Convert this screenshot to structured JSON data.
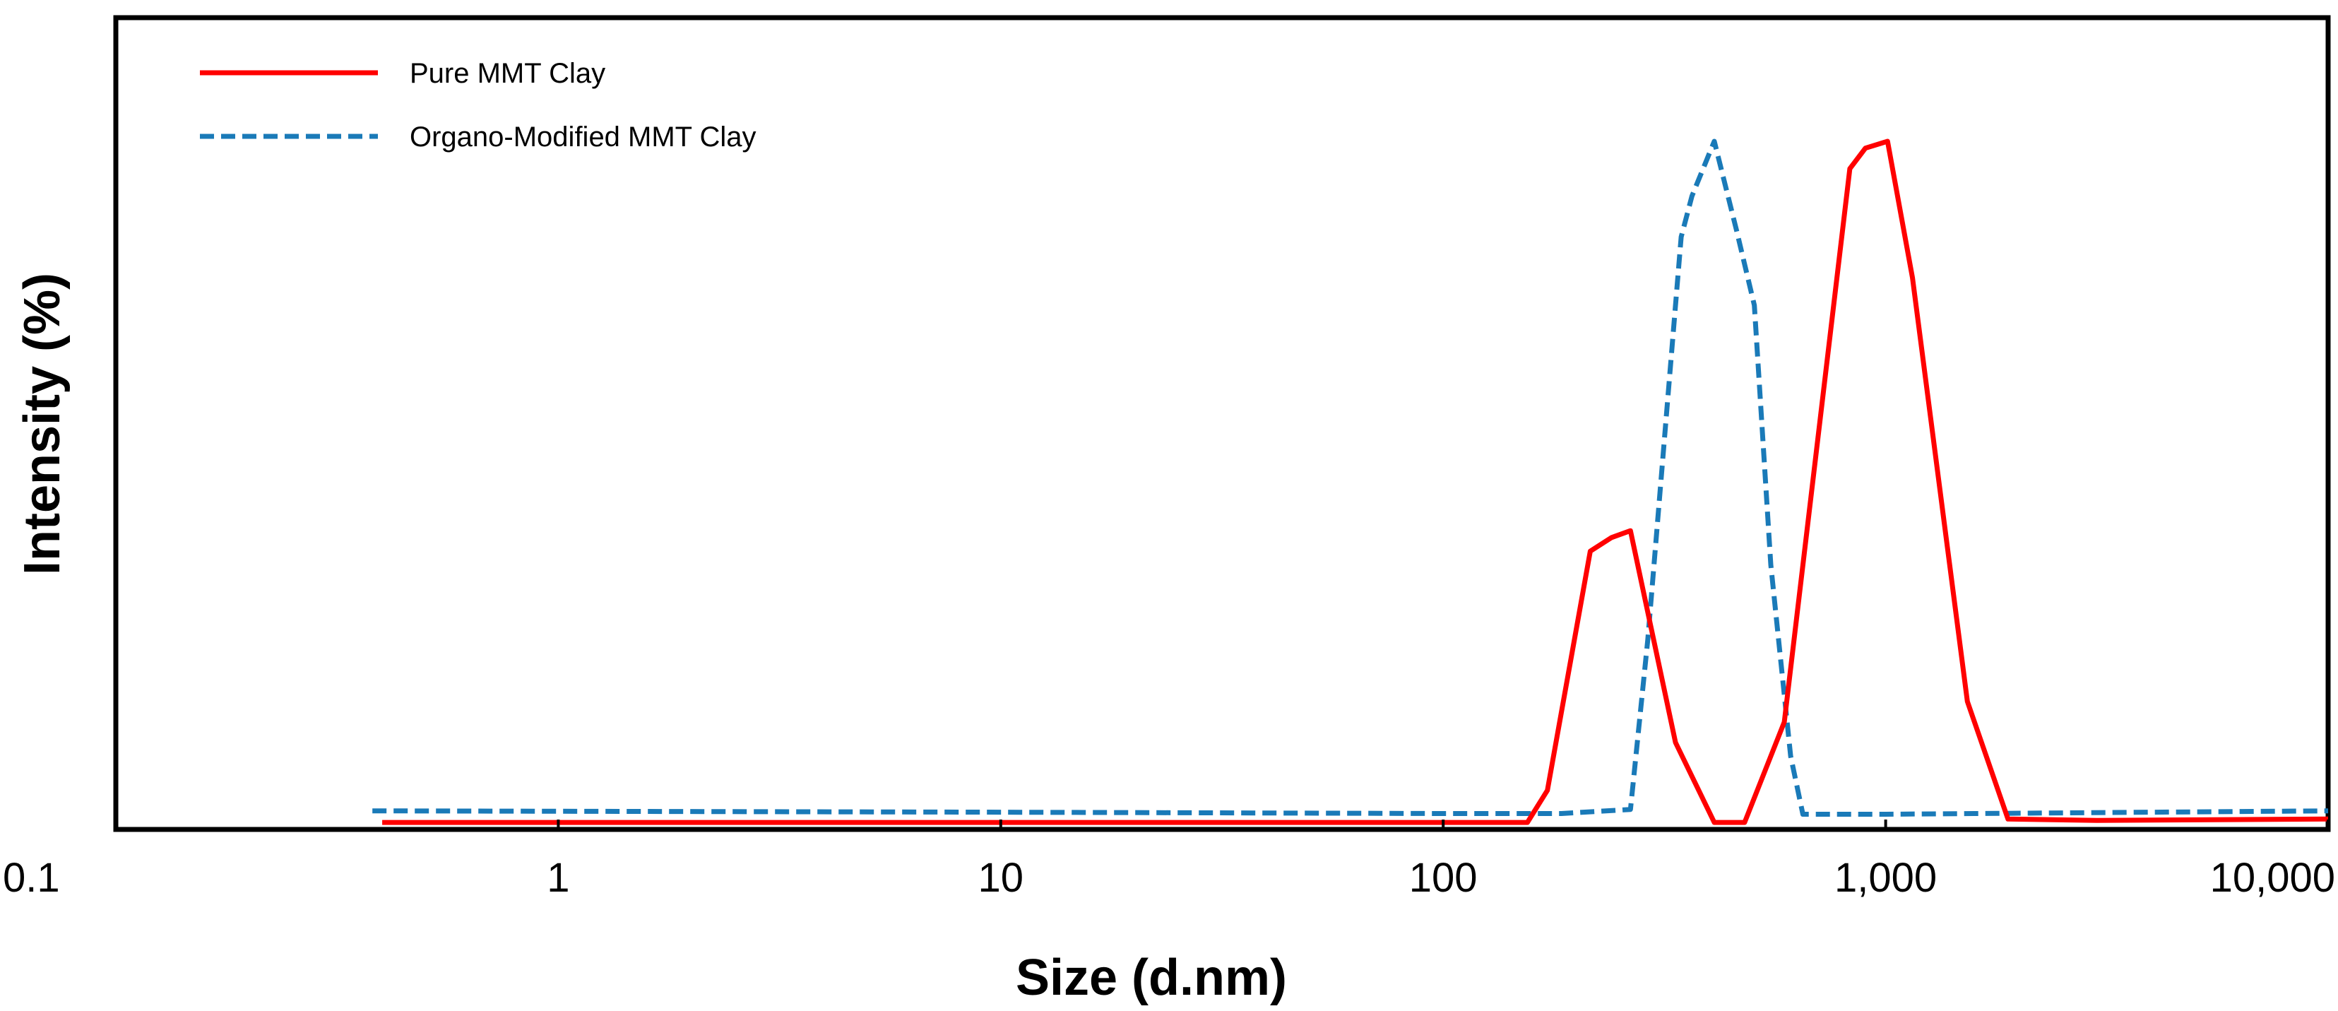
{
  "chart_data": {
    "type": "line",
    "title": "",
    "xlabel": "Size (d.nm)",
    "ylabel": "Intensity (%)",
    "x_scale": "log",
    "xlim": [
      0.1,
      10000
    ],
    "ylim": [
      0,
      100
    ],
    "y_ticks_shown": false,
    "grid": false,
    "legend_position": "top-left",
    "x_ticks": [
      {
        "value": 0.1,
        "label": "0.1"
      },
      {
        "value": 1,
        "label": "1"
      },
      {
        "value": 10,
        "label": "10"
      },
      {
        "value": 100,
        "label": "100"
      },
      {
        "value": 1000,
        "label": "1,000"
      },
      {
        "value": 10000,
        "label": "10,000"
      }
    ],
    "series": [
      {
        "name": "Pure MMT Clay",
        "color": "#ff0000",
        "style": "solid",
        "x": [
          0.4,
          100,
          155,
          172,
          215,
          240,
          265,
          335,
          410,
          480,
          590,
          830,
          900,
          1010,
          1150,
          1530,
          1890,
          3000,
          10000
        ],
        "y": [
          0.3,
          0.3,
          0.3,
          5,
          40,
          42,
          43,
          12,
          0.3,
          0.3,
          15,
          96,
          99,
          100,
          80,
          18,
          0.8,
          0.6,
          0.8
        ]
      },
      {
        "name": "Organo-Modified MMT Clay",
        "color": "#1a7ab8",
        "style": "dashed",
        "x": [
          0.38,
          10,
          100,
          185,
          265,
          290,
          345,
          365,
          410,
          460,
          505,
          550,
          610,
          650,
          1000,
          10000
        ],
        "y": [
          2,
          1.8,
          1.6,
          1.6,
          2.2,
          27,
          86,
          92,
          100,
          87,
          76,
          38,
          10,
          1.5,
          1.5,
          2
        ]
      }
    ]
  }
}
